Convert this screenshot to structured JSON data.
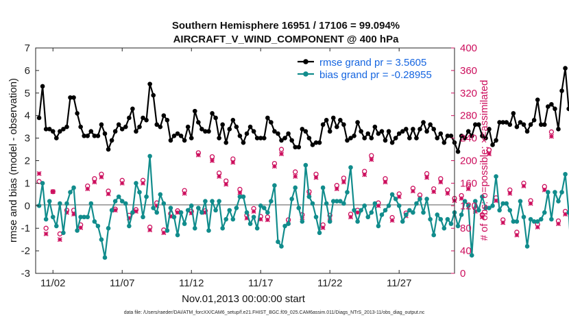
{
  "chart_data": {
    "type": "line",
    "title": "Southern Hemisphere 16951 / 17106 = 99.094%",
    "subtitle": "AIRCRAFT_V_WIND_COMPONENT @ 400 hPa",
    "xlabel": "Nov.01,2013 00:00:00 start",
    "ylabel": "rmse and bias (model - observation)",
    "ylabel_right": "# of obs: o=possible; ×=assimilated",
    "footnote": "data file: /Users/raeder/DAI/ATM_forcXX/CAM6_setup/f.e21.FHIST_BGC.f09_025.CAM6assim.011/Diags_NTrS_2013-11/obs_diag_output.nc",
    "x_ticks": [
      "11/02",
      "11/07",
      "11/12",
      "11/17",
      "11/22",
      "11/27"
    ],
    "x_tick_days": [
      2,
      7,
      12,
      17,
      22,
      27
    ],
    "xlim": [
      0.75,
      31.0
    ],
    "y_ticks": [
      "-3",
      "-2",
      "-1",
      "0",
      "1",
      "2",
      "3",
      "4",
      "5",
      "6",
      "7"
    ],
    "ylim": [
      -3,
      7
    ],
    "y2_ticks": [
      "0",
      "40",
      "80",
      "120",
      "160",
      "200",
      "240",
      "280",
      "320",
      "360",
      "400"
    ],
    "y2lim": [
      0,
      400
    ],
    "grid": false,
    "legend_position": "top-right",
    "colors": {
      "rmse": "#000000",
      "bias": "#118c8c",
      "obs": "#cc0d5c",
      "zero_line": "#aaaaaa"
    },
    "series": [
      {
        "name": "rmse grand pr = 3.5605",
        "axis": "left",
        "x_start_day": 1.0,
        "x_step_day": 0.25,
        "values": [
          3.9,
          5.3,
          3.4,
          3.4,
          3.3,
          3.0,
          3.3,
          3.4,
          3.5,
          4.8,
          4.8,
          4.1,
          3.5,
          3.1,
          3.1,
          3.3,
          3.1,
          3.1,
          3.6,
          3.2,
          2.5,
          2.9,
          3.3,
          3.6,
          3.4,
          3.5,
          3.9,
          4.3,
          3.3,
          3.5,
          3.9,
          3.8,
          5.4,
          4.9,
          3.6,
          3.5,
          4.0,
          3.8,
          2.9,
          3.1,
          3.2,
          3.1,
          2.9,
          3.5,
          3.0,
          4.2,
          3.7,
          3.4,
          3.3,
          3.3,
          4.1,
          3.9,
          3.0,
          3.6,
          2.8,
          3.4,
          3.8,
          3.5,
          3.1,
          2.8,
          3.2,
          3.5,
          3.3,
          3.0,
          3.0,
          3.0,
          3.9,
          3.7,
          3.3,
          3.2,
          2.9,
          3.0,
          3.2,
          2.9,
          2.6,
          2.6,
          3.4,
          3.3,
          3.0,
          2.7,
          2.8,
          2.8,
          3.6,
          3.8,
          3.3,
          3.9,
          3.5,
          3.8,
          3.6,
          2.9,
          3.0,
          3.1,
          3.7,
          3.3,
          3.0,
          3.2,
          3.0,
          3.5,
          3.2,
          3.3,
          2.9,
          3.3,
          2.8,
          3.0,
          3.2,
          3.3,
          3.4,
          3.0,
          3.4,
          3.0,
          3.4,
          3.7,
          3.3,
          3.6,
          3.4,
          3.0,
          3.2,
          2.8,
          3.1,
          3.1,
          2.8,
          2.4,
          3.1,
          3.0,
          3.3,
          3.1,
          3.6,
          3.6,
          3.1,
          3.0,
          3.4,
          2.7,
          2.9,
          3.7,
          3.7,
          3.7,
          3.6,
          4.1,
          3.5,
          3.7,
          3.6,
          3.3,
          3.6,
          3.8,
          4.7,
          3.6,
          3.6,
          4.4,
          4.5,
          4.3,
          3.4,
          5.1,
          6.1,
          4.3,
          3.9,
          5.2
        ]
      },
      {
        "name": "bias grand pr = -0.28955",
        "axis": "left",
        "x_start_day": 1.0,
        "x_step_day": 0.25,
        "values": [
          0.0,
          1.0,
          -0.6,
          0.2,
          -0.5,
          -0.9,
          0.1,
          -1.2,
          0.1,
          0.6,
          0.8,
          -1.1,
          -0.5,
          -0.5,
          -0.5,
          0.1,
          -0.7,
          -0.9,
          -1.5,
          -2.3,
          -1.0,
          -0.2,
          0.2,
          0.4,
          0.2,
          0.1,
          -0.9,
          -0.3,
          1.0,
          0.6,
          -0.5,
          0.4,
          2.2,
          -0.1,
          -0.3,
          0.5,
          0.1,
          -1.1,
          -0.1,
          -0.5,
          -1.3,
          -0.3,
          -0.8,
          -0.2,
          0.0,
          -1.0,
          -0.1,
          -0.3,
          0.2,
          -1.1,
          0.2,
          -0.2,
          0.2,
          -1.0,
          -0.6,
          -0.2,
          -0.6,
          -0.1,
          0.4,
          0.4,
          -0.3,
          -0.8,
          -0.5,
          -1.0,
          0.0,
          -0.1,
          -0.3,
          0.2,
          0.9,
          -1.6,
          -1.8,
          -0.9,
          -0.8,
          0.3,
          0.8,
          -0.1,
          -0.7,
          1.8,
          0.4,
          0.1,
          -0.5,
          -1.2,
          0.8,
          0.1,
          -0.7,
          0.2,
          0.2,
          0.2,
          0.1,
          0.6,
          1.7,
          -0.2,
          -0.7,
          -0.2,
          0.0,
          -0.5,
          -0.3,
          0.1,
          -0.9,
          -0.4,
          -0.2,
          0.0,
          0.5,
          0.3,
          0.0,
          -0.7,
          -0.4,
          -0.2,
          -0.3,
          0.1,
          0.3,
          -0.3,
          0.3,
          -0.6,
          -1.3,
          -0.4,
          -0.6,
          -1.0,
          -0.6,
          -0.8,
          -0.3,
          -0.9,
          -0.4,
          0.2,
          0.0,
          -2.2,
          0.2,
          -0.2,
          0.4,
          -0.1,
          -0.1,
          0.0,
          1.3,
          -0.2,
          0.1,
          0.1,
          -0.2,
          -0.7,
          -0.7,
          0.2,
          -0.5,
          -1.8,
          -0.6,
          -0.7,
          -0.7,
          -0.6,
          -0.3,
          0.6,
          -0.6,
          0.6,
          0.2,
          0.6,
          1.4,
          -0.3,
          -3.0,
          -3.0
        ]
      },
      {
        "name": "obs possible",
        "axis": "right",
        "x_start_day": 1.0,
        "x_step_day": 0.5,
        "values": [
          163,
          80,
          145,
          70,
          112,
          112,
          86,
          155,
          168,
          176,
          146,
          114,
          165,
          103,
          113,
          165,
          82,
          125,
          77,
          106,
          111,
          147,
          110,
          214,
          111,
          207,
          178,
          164,
          203,
          149,
          103,
          115,
          101,
          100,
          195,
          220,
          95,
          180,
          104,
          145,
          176,
          86,
          103,
          156,
          169,
          105,
          112,
          181,
          209,
          125,
          168,
          99,
          141,
          107,
          151,
          139,
          177,
          150,
          168,
          148,
          133,
          138,
          155,
          115,
          104,
          219,
          134,
          95,
          148,
          73,
          160,
          129,
          87,
          154,
          251,
          93,
          110,
          166,
          112,
          98,
          103,
          240,
          271,
          313,
          233,
          197,
          184,
          100,
          106,
          122,
          102,
          207,
          91,
          120,
          112
        ]
      },
      {
        "name": "obs assimilated",
        "axis": "right",
        "x_start_day": 1.0,
        "x_step_day": 0.5,
        "values": [
          177,
          70,
          145,
          60,
          108,
          105,
          81,
          150,
          162,
          171,
          141,
          112,
          160,
          98,
          110,
          160,
          77,
          120,
          72,
          101,
          108,
          142,
          107,
          210,
          108,
          200,
          172,
          158,
          197,
          143,
          98,
          110,
          96,
          95,
          190,
          212,
          90,
          172,
          99,
          140,
          170,
          81,
          98,
          150,
          162,
          100,
          108,
          175,
          202,
          120,
          162,
          94,
          136,
          102,
          146,
          134,
          170,
          145,
          162,
          142,
          129,
          133,
          150,
          110,
          100,
          212,
          129,
          90,
          142,
          68,
          155,
          124,
          82,
          148,
          243,
          88,
          105,
          160,
          108,
          94,
          99,
          232,
          262,
          305,
          225,
          190,
          178,
          95,
          101,
          117,
          98,
          200,
          86,
          115,
          107
        ]
      }
    ]
  }
}
